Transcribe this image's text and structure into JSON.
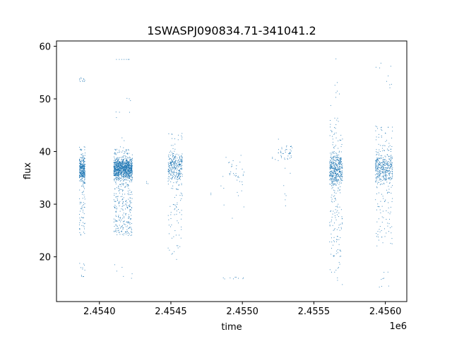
{
  "chart_data": {
    "type": "scatter",
    "title": "1SWASPJ090834.71-341041.2",
    "xlabel": "time",
    "ylabel": "flux",
    "x_offset_label": "1e6",
    "xlim": [
      2.4537,
      2.45615
    ],
    "ylim": [
      11.5,
      61.0
    ],
    "xticks": [
      2.454,
      2.4545,
      2.455,
      2.4555,
      2.456
    ],
    "xtick_labels": [
      "2.4540",
      "2.4545",
      "2.4550",
      "2.4555",
      "2.4560"
    ],
    "yticks": [
      20,
      30,
      40,
      50,
      60
    ],
    "ytick_labels": [
      "20",
      "30",
      "40",
      "50",
      "60"
    ],
    "grid": false,
    "marker_color": "#1f77b4",
    "clusters": [
      {
        "x": [
          2.45386,
          2.4539
        ],
        "center": 36.5,
        "core": [
          33,
          40
        ],
        "tail": [
          24,
          41
        ],
        "n": 380,
        "extra": [
          [
            53.2,
            54.1
          ],
          [
            16.2,
            18.8
          ]
        ]
      },
      {
        "x": [
          2.4541,
          2.45423
        ],
        "center": 36.8,
        "core": [
          34,
          39.5
        ],
        "tail": [
          24,
          40.5
        ],
        "n": 1300,
        "extra": [
          [
            40.5,
            50.2
          ],
          [
            15.0,
            19.0
          ],
          [
            57.5,
            57.5
          ]
        ]
      },
      {
        "x": [
          2.45448,
          2.45458
        ],
        "center": 36.5,
        "core": [
          33,
          41
        ],
        "tail": [
          23.5,
          43.5
        ],
        "n": 360,
        "extra": [
          [
            19.5,
            22.5
          ]
        ]
      },
      {
        "x": [
          2.45485,
          2.45502
        ],
        "center": 36.0,
        "core": [
          31,
          40
        ],
        "tail": [
          27,
          42
        ],
        "n": 40,
        "extra": [
          [
            15.8,
            16.2
          ]
        ]
      },
      {
        "x": [
          2.45525,
          2.45535
        ],
        "center": 39.5,
        "core": [
          37.5,
          42
        ],
        "tail": [
          27.5,
          42.7
        ],
        "n": 50,
        "extra": []
      },
      {
        "x": [
          2.45561,
          2.4557
        ],
        "center": 36.5,
        "core": [
          32,
          41
        ],
        "tail": [
          20,
          47
        ],
        "n": 560,
        "extra": [
          [
            47,
            58.5
          ],
          [
            14.7,
            19.0
          ]
        ]
      },
      {
        "x": [
          2.45593,
          2.45605
        ],
        "center": 37.0,
        "core": [
          33,
          40.5
        ],
        "tail": [
          22,
          45
        ],
        "n": 480,
        "extra": [
          [
            52,
            56.8
          ],
          [
            14.2,
            17.5
          ]
        ]
      }
    ]
  }
}
